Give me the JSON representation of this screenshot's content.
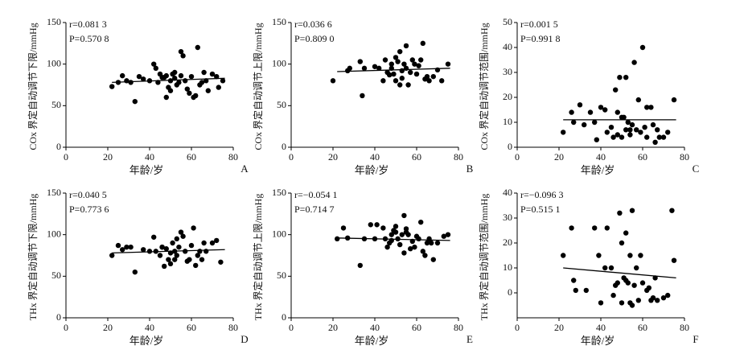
{
  "chart_data": [
    {
      "type": "scatter",
      "annotations": [
        "r=0.081 3",
        "P=0.570 8"
      ],
      "xlabel": "年龄/岁",
      "ylabel": "COx 界定自动调节下限/mmHg",
      "panel": "A",
      "xlim": [
        0,
        80
      ],
      "xticks": [
        0,
        20,
        40,
        60,
        80
      ],
      "ylim": [
        0,
        150
      ],
      "yticks": [
        0,
        50,
        100,
        150
      ],
      "color": "#000000",
      "x": [
        22,
        25,
        27,
        29,
        31,
        33,
        35,
        37,
        40,
        42,
        43,
        44,
        45,
        47,
        48,
        49,
        50,
        51,
        52,
        53,
        54,
        55,
        55,
        56,
        57,
        58,
        59,
        60,
        61,
        62,
        63,
        64,
        65,
        66,
        67,
        68,
        70,
        72,
        73,
        75,
        48,
        46,
        52,
        50
      ],
      "values": [
        73,
        78,
        86,
        80,
        78,
        55,
        85,
        82,
        80,
        100,
        95,
        78,
        88,
        84,
        60,
        72,
        80,
        88,
        90,
        75,
        78,
        86,
        115,
        110,
        80,
        70,
        65,
        85,
        60,
        62,
        120,
        75,
        78,
        90,
        80,
        68,
        88,
        85,
        72,
        80,
        86,
        84,
        83,
        68
      ],
      "fit_x": [
        22,
        76
      ],
      "fit_y": [
        78,
        83
      ]
    },
    {
      "type": "scatter",
      "annotations": [
        "r=0.036 6",
        "P=0.809 0"
      ],
      "xlabel": "年龄/岁",
      "ylabel": "COx 界定自动调节上限/mmHg",
      "panel": "B",
      "xlim": [
        0,
        80
      ],
      "xticks": [
        0,
        20,
        40,
        60,
        80
      ],
      "ylim": [
        0,
        150
      ],
      "yticks": [
        0,
        50,
        100,
        150
      ],
      "color": "#000000",
      "x": [
        20,
        27,
        28,
        33,
        34,
        35,
        40,
        42,
        44,
        45,
        46,
        47,
        48,
        49,
        50,
        51,
        52,
        53,
        53,
        54,
        55,
        55,
        56,
        57,
        58,
        59,
        60,
        61,
        62,
        63,
        64,
        65,
        66,
        68,
        70,
        72,
        75,
        50,
        48,
        52
      ],
      "values": [
        80,
        92,
        95,
        103,
        62,
        95,
        97,
        95,
        80,
        105,
        90,
        87,
        95,
        88,
        80,
        103,
        115,
        83,
        92,
        100,
        122,
        95,
        75,
        90,
        105,
        100,
        88,
        98,
        105,
        125,
        82,
        85,
        80,
        85,
        93,
        80,
        100,
        108,
        100,
        75
      ],
      "fit_x": [
        22,
        76
      ],
      "fit_y": [
        91,
        95
      ]
    },
    {
      "type": "scatter",
      "annotations": [
        "r=0.001 5",
        "P=0.991 8"
      ],
      "xlabel": "年龄/岁",
      "ylabel": "COx 界定自动调节范围/mmHg",
      "panel": "C",
      "xlim": [
        0,
        80
      ],
      "xticks": [
        0,
        20,
        40,
        60,
        80
      ],
      "ylim": [
        0,
        50
      ],
      "yticks": [
        0,
        10,
        20,
        30,
        40,
        50
      ],
      "color": "#000000",
      "x": [
        22,
        26,
        27,
        30,
        32,
        35,
        37,
        38,
        40,
        42,
        43,
        45,
        46,
        47,
        48,
        48,
        49,
        50,
        51,
        52,
        52,
        53,
        54,
        55,
        56,
        57,
        58,
        59,
        60,
        61,
        62,
        62,
        64,
        65,
        66,
        67,
        68,
        70,
        72,
        75,
        50,
        54
      ],
      "values": [
        6,
        14,
        10,
        17,
        9,
        14,
        10,
        3,
        16,
        15,
        6,
        8,
        4,
        23,
        14,
        5,
        28,
        4,
        12,
        28,
        7,
        10,
        5,
        9,
        34,
        7,
        19,
        6,
        40,
        8,
        16,
        4,
        16,
        9,
        2,
        7,
        4,
        4,
        6,
        19,
        12,
        7
      ],
      "fit_x": [
        22,
        76
      ],
      "fit_y": [
        11,
        11
      ]
    },
    {
      "type": "scatter",
      "annotations": [
        "r=0.040 5",
        "P=0.773 6"
      ],
      "xlabel": "年龄/岁",
      "ylabel": "THx 界定自动调节下限/mmHg",
      "panel": "D",
      "xlim": [
        0,
        80
      ],
      "xticks": [
        0,
        20,
        40,
        60,
        80
      ],
      "ylim": [
        0,
        150
      ],
      "yticks": [
        0,
        50,
        100,
        150
      ],
      "color": "#000000",
      "x": [
        22,
        25,
        27,
        29,
        31,
        33,
        37,
        40,
        42,
        43,
        45,
        46,
        47,
        48,
        49,
        50,
        51,
        52,
        53,
        53,
        54,
        55,
        56,
        57,
        58,
        59,
        60,
        61,
        62,
        63,
        64,
        65,
        66,
        67,
        70,
        72,
        74,
        52,
        50,
        46
      ],
      "values": [
        75,
        87,
        82,
        85,
        85,
        55,
        82,
        80,
        97,
        80,
        75,
        85,
        62,
        83,
        70,
        78,
        90,
        80,
        75,
        95,
        85,
        103,
        98,
        80,
        68,
        70,
        87,
        108,
        63,
        75,
        80,
        70,
        90,
        80,
        90,
        93,
        67,
        70,
        65,
        85
      ],
      "fit_x": [
        22,
        76
      ],
      "fit_y": [
        78,
        82
      ]
    },
    {
      "type": "scatter",
      "annotations": [
        "r=−0.054 1",
        "P=0.714 7"
      ],
      "xlabel": "年龄/岁",
      "ylabel": "THx 界定自动调节上限/mmHg",
      "panel": "E",
      "xlim": [
        0,
        80
      ],
      "xticks": [
        0,
        20,
        40,
        60,
        80
      ],
      "ylim": [
        0,
        150
      ],
      "yticks": [
        0,
        50,
        100,
        150
      ],
      "color": "#000000",
      "x": [
        22,
        25,
        27,
        33,
        35,
        38,
        40,
        41,
        44,
        45,
        46,
        47,
        48,
        49,
        50,
        51,
        52,
        53,
        54,
        54,
        55,
        56,
        57,
        58,
        59,
        60,
        61,
        62,
        63,
        64,
        65,
        66,
        67,
        68,
        70,
        73,
        75,
        50,
        55,
        48
      ],
      "values": [
        95,
        108,
        96,
        63,
        95,
        112,
        95,
        112,
        108,
        95,
        85,
        90,
        100,
        105,
        110,
        95,
        88,
        100,
        78,
        123,
        107,
        100,
        83,
        92,
        85,
        98,
        95,
        115,
        80,
        75,
        90,
        95,
        90,
        70,
        90,
        98,
        100,
        103,
        103,
        93
      ],
      "fit_x": [
        22,
        76
      ],
      "fit_y": [
        96,
        93
      ]
    },
    {
      "type": "scatter",
      "annotations": [
        "r=−0.096 3",
        "P=0.515 1"
      ],
      "xlabel": "年龄/岁",
      "ylabel": "THx 界定自动调节范围/mmHg",
      "panel": "F",
      "xlim": [
        0,
        80
      ],
      "xticks": [
        0,
        20,
        40,
        60,
        80
      ],
      "ylim": [
        -10,
        40
      ],
      "yticks": [
        0,
        10,
        20,
        30,
        40
      ],
      "color": "#000000",
      "x": [
        22,
        26,
        27,
        28,
        33,
        37,
        39,
        40,
        42,
        43,
        45,
        46,
        47,
        48,
        49,
        50,
        50,
        51,
        52,
        53,
        54,
        54,
        55,
        55,
        56,
        57,
        58,
        59,
        60,
        62,
        63,
        64,
        65,
        66,
        67,
        70,
        72,
        74,
        75,
        52
      ],
      "values": [
        15,
        26,
        5,
        1,
        1,
        26,
        15,
        -4,
        10,
        26,
        10,
        -1,
        3,
        4,
        32,
        -4,
        20,
        6,
        24,
        4,
        -4,
        15,
        33,
        -5,
        3,
        10,
        -3,
        15,
        4,
        1,
        2,
        -3,
        -2,
        6,
        -3,
        -2,
        -1,
        33,
        13,
        5
      ],
      "fit_x": [
        22,
        76
      ],
      "fit_y": [
        10,
        6
      ]
    }
  ]
}
